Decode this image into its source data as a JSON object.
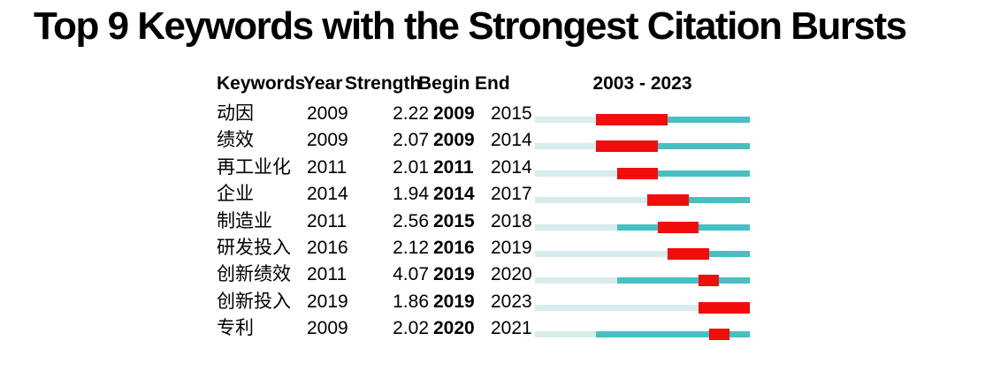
{
  "title": "Top 9 Keywords with the Strongest Citation Bursts",
  "colors": {
    "burst_red": "#F20D0D",
    "active_teal": "#48BFC2",
    "pre_light": "#D9ECEC",
    "text": "#000000"
  },
  "chart_data": {
    "type": "table",
    "title": "Top 9 Keywords with the Strongest Citation Bursts",
    "columns": {
      "keywords": "Keywords",
      "year": "Year",
      "strength": "Strength",
      "begin": "Begin",
      "end": "End"
    },
    "timeline_header": "2003 - 2023",
    "axis_range": [
      2003,
      2023
    ],
    "legend_note": "pale segment = years before keyword appears, teal segment = keyword active years, red segment = citation burst period (Begin to End)",
    "rows": [
      {
        "keyword": "动因",
        "year": 2009,
        "strength": "2.22",
        "begin": 2009,
        "end": 2015
      },
      {
        "keyword": "绩效",
        "year": 2009,
        "strength": "2.07",
        "begin": 2009,
        "end": 2014
      },
      {
        "keyword": "再工业化",
        "year": 2011,
        "strength": "2.01",
        "begin": 2011,
        "end": 2014
      },
      {
        "keyword": "企业",
        "year": 2014,
        "strength": "1.94",
        "begin": 2014,
        "end": 2017
      },
      {
        "keyword": "制造业",
        "year": 2011,
        "strength": "2.56",
        "begin": 2015,
        "end": 2018
      },
      {
        "keyword": "研发投入",
        "year": 2016,
        "strength": "2.12",
        "begin": 2016,
        "end": 2019
      },
      {
        "keyword": "创新绩效",
        "year": 2011,
        "strength": "4.07",
        "begin": 2019,
        "end": 2020
      },
      {
        "keyword": "创新投入",
        "year": 2019,
        "strength": "1.86",
        "begin": 2019,
        "end": 2023
      },
      {
        "keyword": "专利",
        "year": 2009,
        "strength": "2.02",
        "begin": 2020,
        "end": 2021
      }
    ]
  }
}
